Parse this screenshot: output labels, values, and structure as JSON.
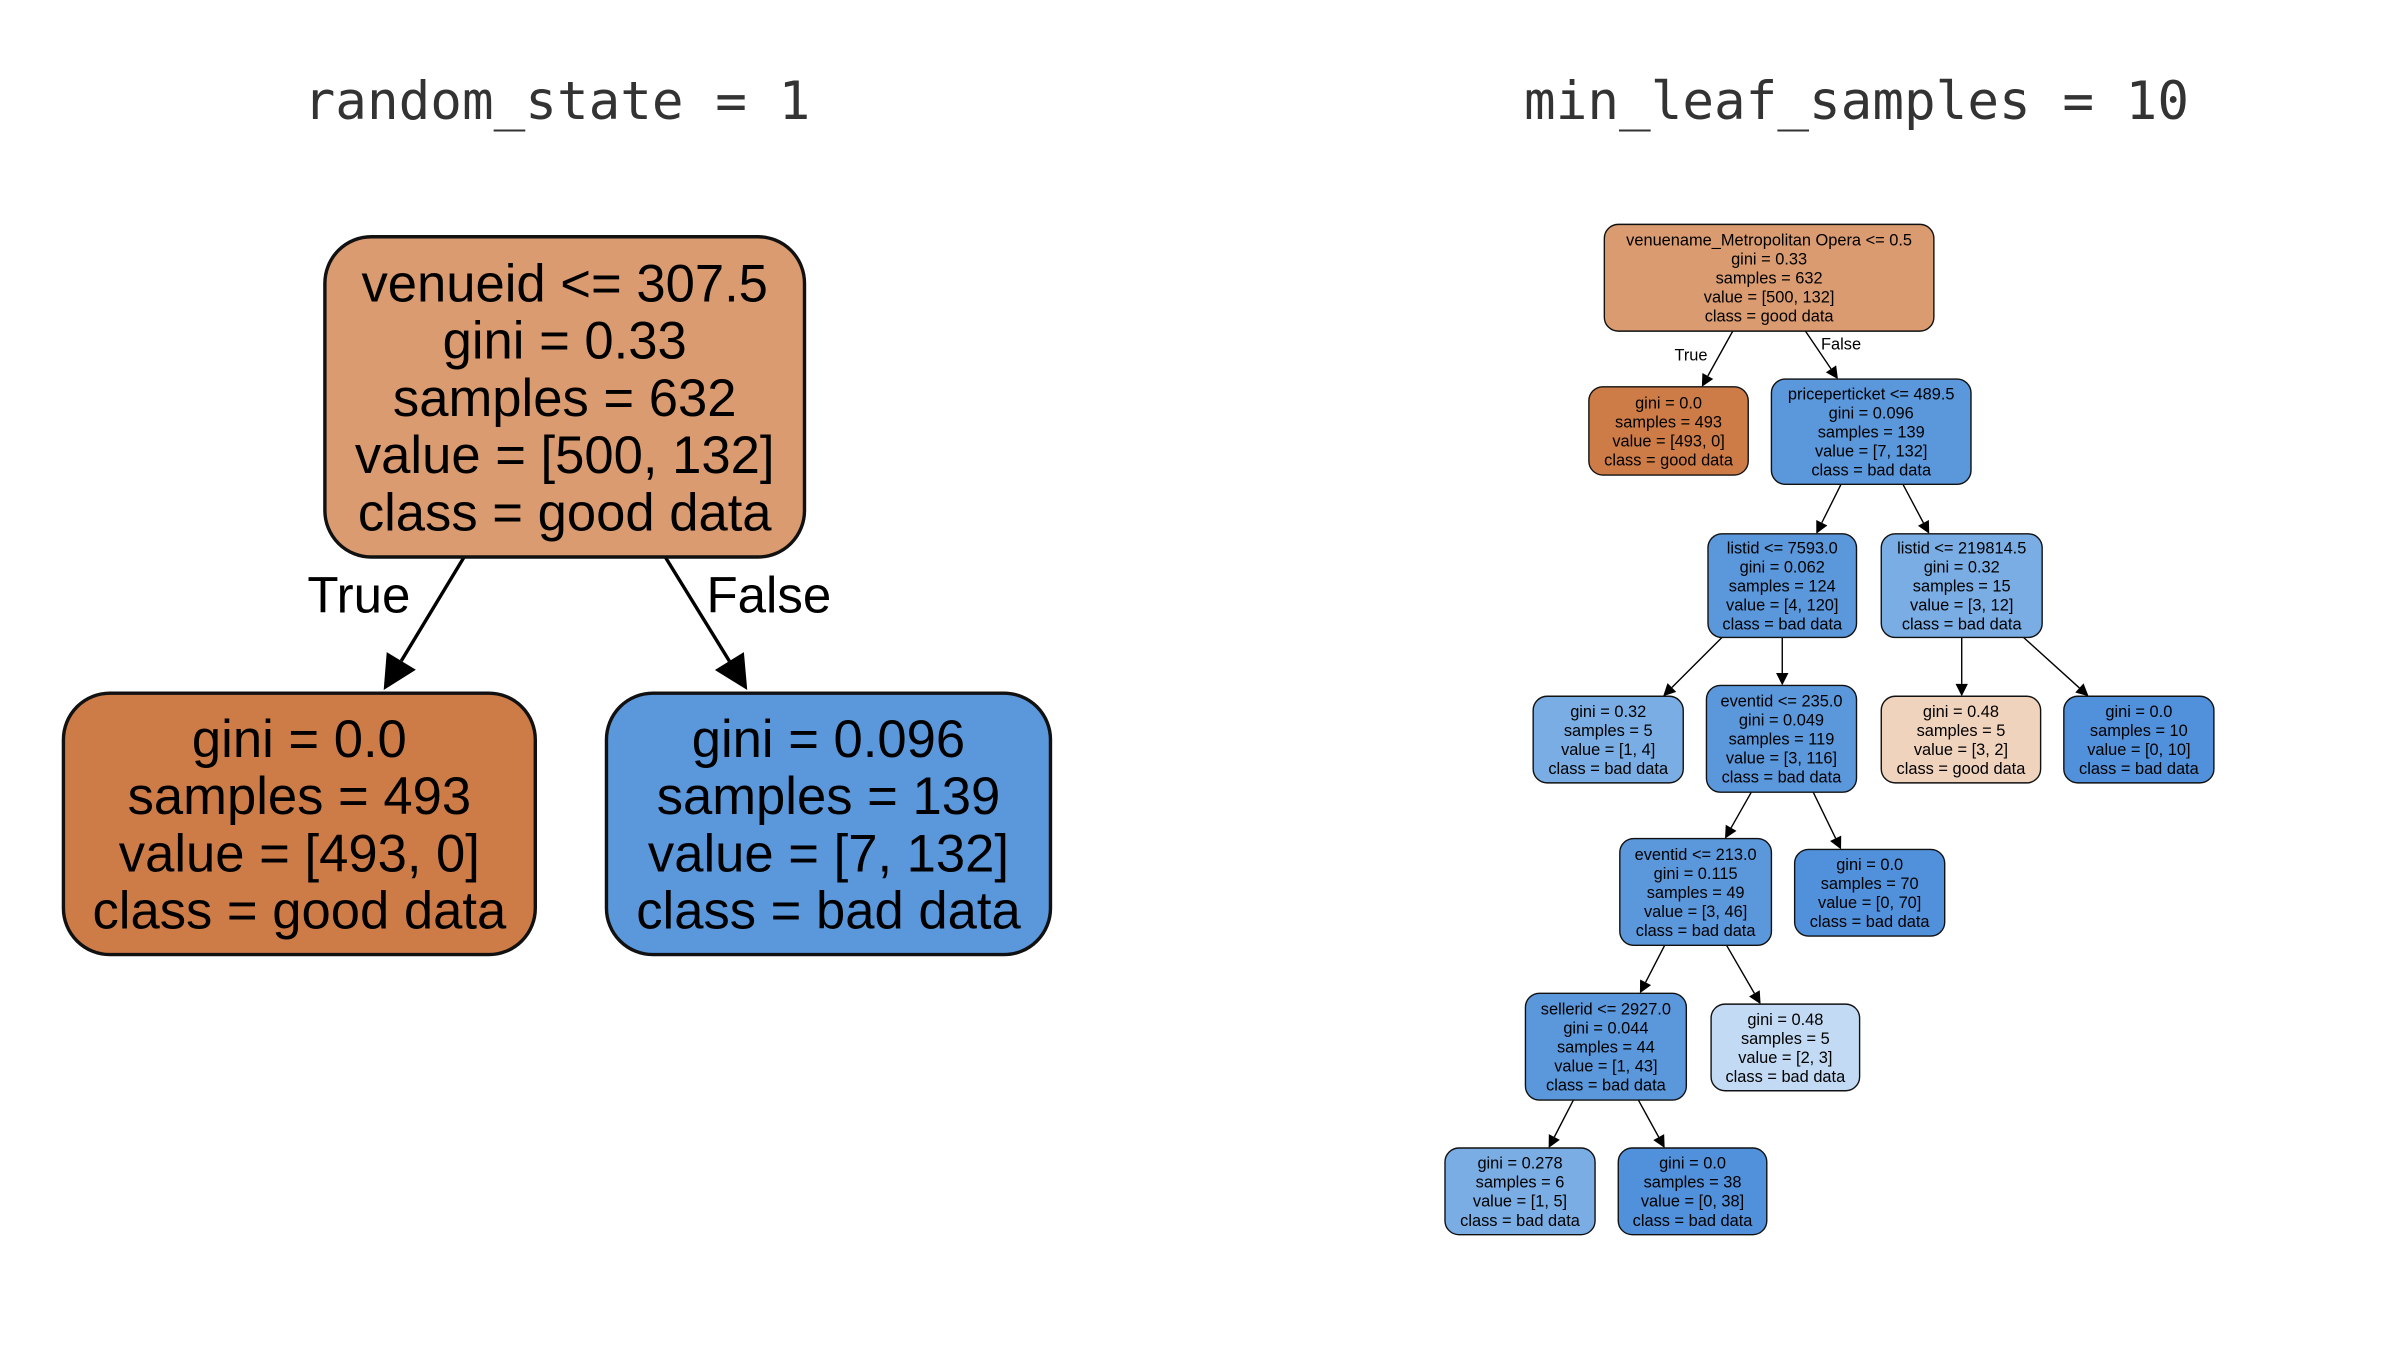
{
  "colors": {
    "good_strong": "#cd7c48",
    "good_root": "#d99b6f",
    "good_light": "#f0d3bd",
    "bad_strong": "#5190da",
    "bad_mid": "#5a97db",
    "bad_soft": "#79ade4",
    "bad_light": "#c2daf4"
  },
  "trees": [
    {
      "title": "random_state = 1",
      "edge_labels": {
        "true": "True",
        "false": "False"
      },
      "nodes": [
        {
          "fill": "good_root",
          "lines": [
            "venueid <= 307.5",
            "gini = 0.33",
            "samples = 632",
            "value = [500, 132]",
            "class = good data"
          ]
        },
        {
          "fill": "good_strong",
          "lines": [
            "gini = 0.0",
            "samples = 493",
            "value = [493, 0]",
            "class = good data"
          ]
        },
        {
          "fill": "bad_mid",
          "lines": [
            "gini = 0.096",
            "samples = 139",
            "value = [7, 132]",
            "class = bad data"
          ]
        }
      ]
    },
    {
      "title": "min_leaf_samples = 10",
      "edge_labels": {
        "true": "True",
        "false": "False"
      },
      "nodes": [
        {
          "fill": "good_root",
          "lines": [
            "venuename_Metropolitan Opera <= 0.5",
            "gini = 0.33",
            "samples = 632",
            "value = [500, 132]",
            "class = good data"
          ]
        },
        {
          "fill": "good_strong",
          "lines": [
            "gini = 0.0",
            "samples = 493",
            "value = [493, 0]",
            "class = good data"
          ]
        },
        {
          "fill": "bad_mid",
          "lines": [
            "priceperticket <= 489.5",
            "gini = 0.096",
            "samples = 139",
            "value = [7, 132]",
            "class = bad data"
          ]
        },
        {
          "fill": "bad_mid",
          "lines": [
            "listid <= 7593.0",
            "gini = 0.062",
            "samples = 124",
            "value = [4, 120]",
            "class = bad data"
          ]
        },
        {
          "fill": "bad_soft",
          "lines": [
            "listid <= 219814.5",
            "gini = 0.32",
            "samples = 15",
            "value = [3, 12]",
            "class = bad data"
          ]
        },
        {
          "fill": "bad_soft",
          "lines": [
            "gini = 0.32",
            "samples = 5",
            "value = [1, 4]",
            "class = bad data"
          ]
        },
        {
          "fill": "bad_mid",
          "lines": [
            "eventid <= 235.0",
            "gini = 0.049",
            "samples = 119",
            "value = [3, 116]",
            "class = bad data"
          ]
        },
        {
          "fill": "good_light",
          "lines": [
            "gini = 0.48",
            "samples = 5",
            "value = [3, 2]",
            "class = good data"
          ]
        },
        {
          "fill": "bad_strong",
          "lines": [
            "gini = 0.0",
            "samples = 10",
            "value = [0, 10]",
            "class = bad data"
          ]
        },
        {
          "fill": "bad_mid",
          "lines": [
            "eventid <= 213.0",
            "gini = 0.115",
            "samples = 49",
            "value = [3, 46]",
            "class = bad data"
          ]
        },
        {
          "fill": "bad_strong",
          "lines": [
            "gini = 0.0",
            "samples = 70",
            "value = [0, 70]",
            "class = bad data"
          ]
        },
        {
          "fill": "bad_mid",
          "lines": [
            "sellerid <= 2927.0",
            "gini = 0.044",
            "samples = 44",
            "value = [1, 43]",
            "class = bad data"
          ]
        },
        {
          "fill": "bad_light",
          "lines": [
            "gini = 0.48",
            "samples = 5",
            "value = [2, 3]",
            "class = bad data"
          ]
        },
        {
          "fill": "bad_soft",
          "lines": [
            "gini = 0.278",
            "samples = 6",
            "value = [1, 5]",
            "class = bad data"
          ]
        },
        {
          "fill": "bad_strong",
          "lines": [
            "gini = 0.0",
            "samples = 38",
            "value = [0, 38]",
            "class = bad data"
          ]
        }
      ]
    }
  ]
}
